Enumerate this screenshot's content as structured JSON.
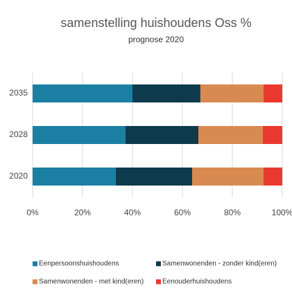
{
  "chart_data": {
    "type": "stacked-bar-horizontal",
    "title": "samenstelling huishoudens Oss %",
    "subtitle": "prognose 2020",
    "categories": [
      "2035",
      "2028",
      "2020"
    ],
    "series": [
      {
        "name": "Eenpersoonshuishoudens",
        "color": "#1a7fa3",
        "values": [
          40,
          37.2,
          33.3
        ]
      },
      {
        "name": "Samenwonenden - zonder kind(eren)",
        "color": "#0d3a4d",
        "values": [
          27.2,
          29.2,
          30.6
        ]
      },
      {
        "name": "Samenwonenden - met kind(eren)",
        "color": "#d98a50",
        "values": [
          25.3,
          25.8,
          28.6
        ]
      },
      {
        "name": "Eenouderhuishoudens",
        "color": "#e8392e",
        "values": [
          7.5,
          7.8,
          7.5
        ]
      }
    ],
    "xlim": [
      0,
      100
    ],
    "xticks": [
      {
        "value": 0,
        "label": "0%"
      },
      {
        "value": 20,
        "label": "20%"
      },
      {
        "value": 40,
        "label": "40%"
      },
      {
        "value": 60,
        "label": "60%"
      },
      {
        "value": 80,
        "label": "80%"
      },
      {
        "value": 100,
        "label": "100%"
      }
    ],
    "grid": true,
    "legend": "bottom"
  }
}
